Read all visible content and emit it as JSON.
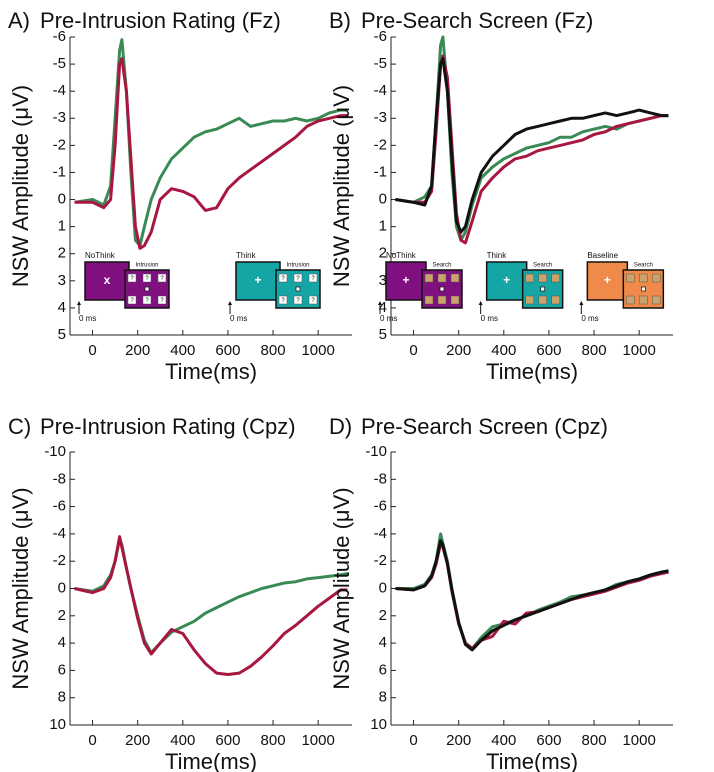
{
  "chart_data": [
    {
      "type": "line",
      "panel": "A)",
      "title": "Pre-Intrusion Rating (Fz)",
      "xlabel": "Time(ms)",
      "ylabel": "NSW Amplitude (μV)",
      "x": [
        -80,
        0,
        50,
        80,
        100,
        120,
        130,
        150,
        170,
        190,
        210,
        230,
        260,
        300,
        350,
        400,
        450,
        500,
        550,
        600,
        650,
        700,
        750,
        800,
        850,
        900,
        950,
        1000,
        1050,
        1100,
        1130
      ],
      "xlim": [
        -100,
        1150
      ],
      "xticks": [
        0,
        200,
        400,
        600,
        800,
        1000
      ],
      "ylim": [
        5,
        -6
      ],
      "yticks": [
        -6,
        -5,
        -4,
        -3,
        -2,
        -1,
        0,
        1,
        2,
        3,
        4,
        5
      ],
      "series": [
        {
          "color": "#3a8a55",
          "values": [
            0.1,
            0,
            0.2,
            -0.5,
            -3,
            -5.5,
            -5.9,
            -4,
            -1,
            1.5,
            1.7,
            1,
            0,
            -0.8,
            -1.5,
            -1.9,
            -2.3,
            -2.5,
            -2.6,
            -2.8,
            -3,
            -2.7,
            -2.8,
            -2.9,
            -2.9,
            -3,
            -2.9,
            -3,
            -3.2,
            -3.3,
            -3.3
          ]
        },
        {
          "color": "#a8173f",
          "values": [
            0.1,
            0.1,
            0.3,
            0,
            -2,
            -5,
            -5.2,
            -4,
            -1.5,
            1,
            1.8,
            1.7,
            1.2,
            0,
            -0.4,
            -0.3,
            -0.1,
            0.4,
            0.3,
            -0.4,
            -0.8,
            -1.1,
            -1.4,
            -1.7,
            -2,
            -2.3,
            -2.7,
            -2.9,
            -3,
            -3.1,
            -3.1
          ]
        }
      ],
      "insets": [
        {
          "condition": "NoThink",
          "screen": "Intrusion",
          "onset": "0 ms",
          "cue": "x",
          "probe": "?",
          "color": "#800f80"
        },
        {
          "condition": "Think",
          "screen": "Intrusion",
          "onset": "0 ms",
          "cue": "+",
          "probe": "?",
          "color": "#16a5a5"
        }
      ]
    },
    {
      "type": "line",
      "panel": "B)",
      "title": "Pre-Search Screen (Fz)",
      "xlabel": "Time(ms)",
      "ylabel": "NSW Amplitude (μV)",
      "x": [
        -80,
        0,
        50,
        80,
        100,
        120,
        130,
        150,
        170,
        190,
        210,
        230,
        260,
        300,
        350,
        400,
        450,
        500,
        550,
        600,
        650,
        700,
        750,
        800,
        850,
        900,
        950,
        1000,
        1050,
        1100,
        1130
      ],
      "xlim": [
        -100,
        1150
      ],
      "xticks": [
        0,
        200,
        400,
        600,
        800,
        1000
      ],
      "ylim": [
        5,
        -6
      ],
      "yticks": [
        -6,
        -5,
        -4,
        -3,
        -2,
        -1,
        0,
        1,
        2,
        3,
        4,
        5
      ],
      "series": [
        {
          "color": "#3a8a55",
          "values": [
            0,
            0.1,
            -0.1,
            -0.5,
            -3,
            -5.7,
            -6,
            -4,
            -1,
            1,
            1.5,
            1.2,
            0.2,
            -0.8,
            -1.2,
            -1.5,
            -1.7,
            -1.9,
            -2,
            -2.1,
            -2.3,
            -2.3,
            -2.5,
            -2.6,
            -2.7,
            -2.6,
            -2.8,
            -2.9,
            -3,
            -3.1,
            -3.1
          ]
        },
        {
          "color": "#a8173f",
          "values": [
            0,
            0.1,
            0.1,
            -0.3,
            -2.5,
            -5,
            -5.3,
            -4.5,
            -2,
            0.5,
            1.5,
            1.6,
            0.8,
            -0.3,
            -0.8,
            -1.2,
            -1.5,
            -1.6,
            -1.8,
            -1.9,
            -2,
            -2.1,
            -2.2,
            -2.4,
            -2.5,
            -2.7,
            -2.8,
            -2.9,
            -3,
            -3.1,
            -3.1
          ]
        },
        {
          "color": "#111111",
          "values": [
            0,
            0.1,
            0.2,
            -0.5,
            -3,
            -5,
            -5.2,
            -4,
            -1.5,
            0.8,
            1.2,
            1,
            0,
            -1,
            -1.6,
            -2,
            -2.4,
            -2.6,
            -2.7,
            -2.8,
            -2.9,
            -3,
            -3,
            -3.1,
            -3.2,
            -3.1,
            -3.2,
            -3.3,
            -3.2,
            -3.1,
            -3.1
          ]
        }
      ],
      "insets": [
        {
          "condition": "NoThink",
          "screen": "Search",
          "onset": "0 ms",
          "cue": "+",
          "color": "#800f80"
        },
        {
          "condition": "Think",
          "screen": "Search",
          "onset": "0 ms",
          "cue": "+",
          "color": "#16a5a5"
        },
        {
          "condition": "Baseline",
          "screen": "Search",
          "onset": "0 ms",
          "cue": "+",
          "color": "#f08a4b"
        }
      ]
    },
    {
      "type": "line",
      "panel": "C)",
      "title": "Pre-Intrusion Rating (Cpz)",
      "xlabel": "Time(ms)",
      "ylabel": "NSW Amplitude (μV)",
      "x": [
        -80,
        0,
        50,
        80,
        100,
        120,
        130,
        150,
        170,
        200,
        230,
        260,
        300,
        350,
        400,
        450,
        500,
        550,
        600,
        650,
        700,
        750,
        800,
        850,
        900,
        950,
        1000,
        1050,
        1100,
        1130
      ],
      "xlim": [
        -100,
        1150
      ],
      "xticks": [
        0,
        200,
        400,
        600,
        800,
        1000
      ],
      "ylim": [
        10,
        -10
      ],
      "yticks": [
        -10,
        -8,
        -6,
        -4,
        -2,
        0,
        2,
        4,
        6,
        8,
        10
      ],
      "series": [
        {
          "color": "#3a8a55",
          "values": [
            0,
            0.2,
            -0.2,
            -1,
            -2,
            -3.6,
            -3.2,
            -1.5,
            0,
            2,
            3.8,
            4.7,
            4,
            3.2,
            2.8,
            2.4,
            1.8,
            1.4,
            1,
            0.6,
            0.3,
            0,
            -0.2,
            -0.4,
            -0.5,
            -0.7,
            -0.8,
            -0.9,
            -1,
            -1.1
          ]
        },
        {
          "color": "#a8173f",
          "values": [
            0,
            0.3,
            0,
            -0.8,
            -2,
            -3.8,
            -3,
            -1.5,
            0,
            2.2,
            4,
            4.8,
            4,
            3,
            3.3,
            4.5,
            5.5,
            6.2,
            6.3,
            6.2,
            5.7,
            5,
            4.2,
            3.3,
            2.7,
            2,
            1.3,
            0.7,
            0.1,
            0.1
          ]
        }
      ]
    },
    {
      "type": "line",
      "panel": "D)",
      "title": "Pre-Search Screen (Cpz)",
      "xlabel": "Time(ms)",
      "ylabel": "NSW Amplitude (μV)",
      "x": [
        -80,
        0,
        50,
        80,
        100,
        120,
        130,
        150,
        170,
        200,
        230,
        260,
        300,
        350,
        400,
        450,
        500,
        550,
        600,
        650,
        700,
        750,
        800,
        850,
        900,
        950,
        1000,
        1050,
        1100,
        1130
      ],
      "xlim": [
        -100,
        1150
      ],
      "xticks": [
        0,
        200,
        400,
        600,
        800,
        1000
      ],
      "ylim": [
        10,
        -10
      ],
      "yticks": [
        -10,
        -8,
        -6,
        -4,
        -2,
        0,
        2,
        4,
        6,
        8,
        10
      ],
      "series": [
        {
          "color": "#3a8a55",
          "values": [
            0,
            0,
            -0.3,
            -1,
            -2,
            -4,
            -3.3,
            -2,
            0,
            2.5,
            4,
            4.4,
            3.6,
            2.8,
            2.6,
            2.3,
            2,
            1.6,
            1.3,
            1,
            0.6,
            0.5,
            0.3,
            0.1,
            -0.3,
            -0.5,
            -0.7,
            -1,
            -1.2,
            -1.3
          ]
        },
        {
          "color": "#a8173f",
          "values": [
            0,
            0.1,
            -0.2,
            -0.8,
            -1.8,
            -3.3,
            -3,
            -1.8,
            0.2,
            2.6,
            4,
            4.4,
            3.8,
            3.5,
            2.4,
            2.6,
            1.8,
            1.7,
            1.4,
            1.1,
            0.8,
            0.6,
            0.4,
            0.2,
            -0.1,
            -0.4,
            -0.6,
            -0.9,
            -1.1,
            -1.2
          ]
        },
        {
          "color": "#111111",
          "values": [
            0,
            0.1,
            -0.2,
            -0.9,
            -2,
            -3.5,
            -3.2,
            -1.8,
            0.1,
            2.5,
            4.1,
            4.5,
            3.8,
            3.1,
            2.7,
            2.3,
            2,
            1.7,
            1.4,
            1.1,
            0.8,
            0.5,
            0.3,
            0.1,
            -0.2,
            -0.5,
            -0.7,
            -1,
            -1.2,
            -1.3
          ]
        }
      ]
    }
  ]
}
